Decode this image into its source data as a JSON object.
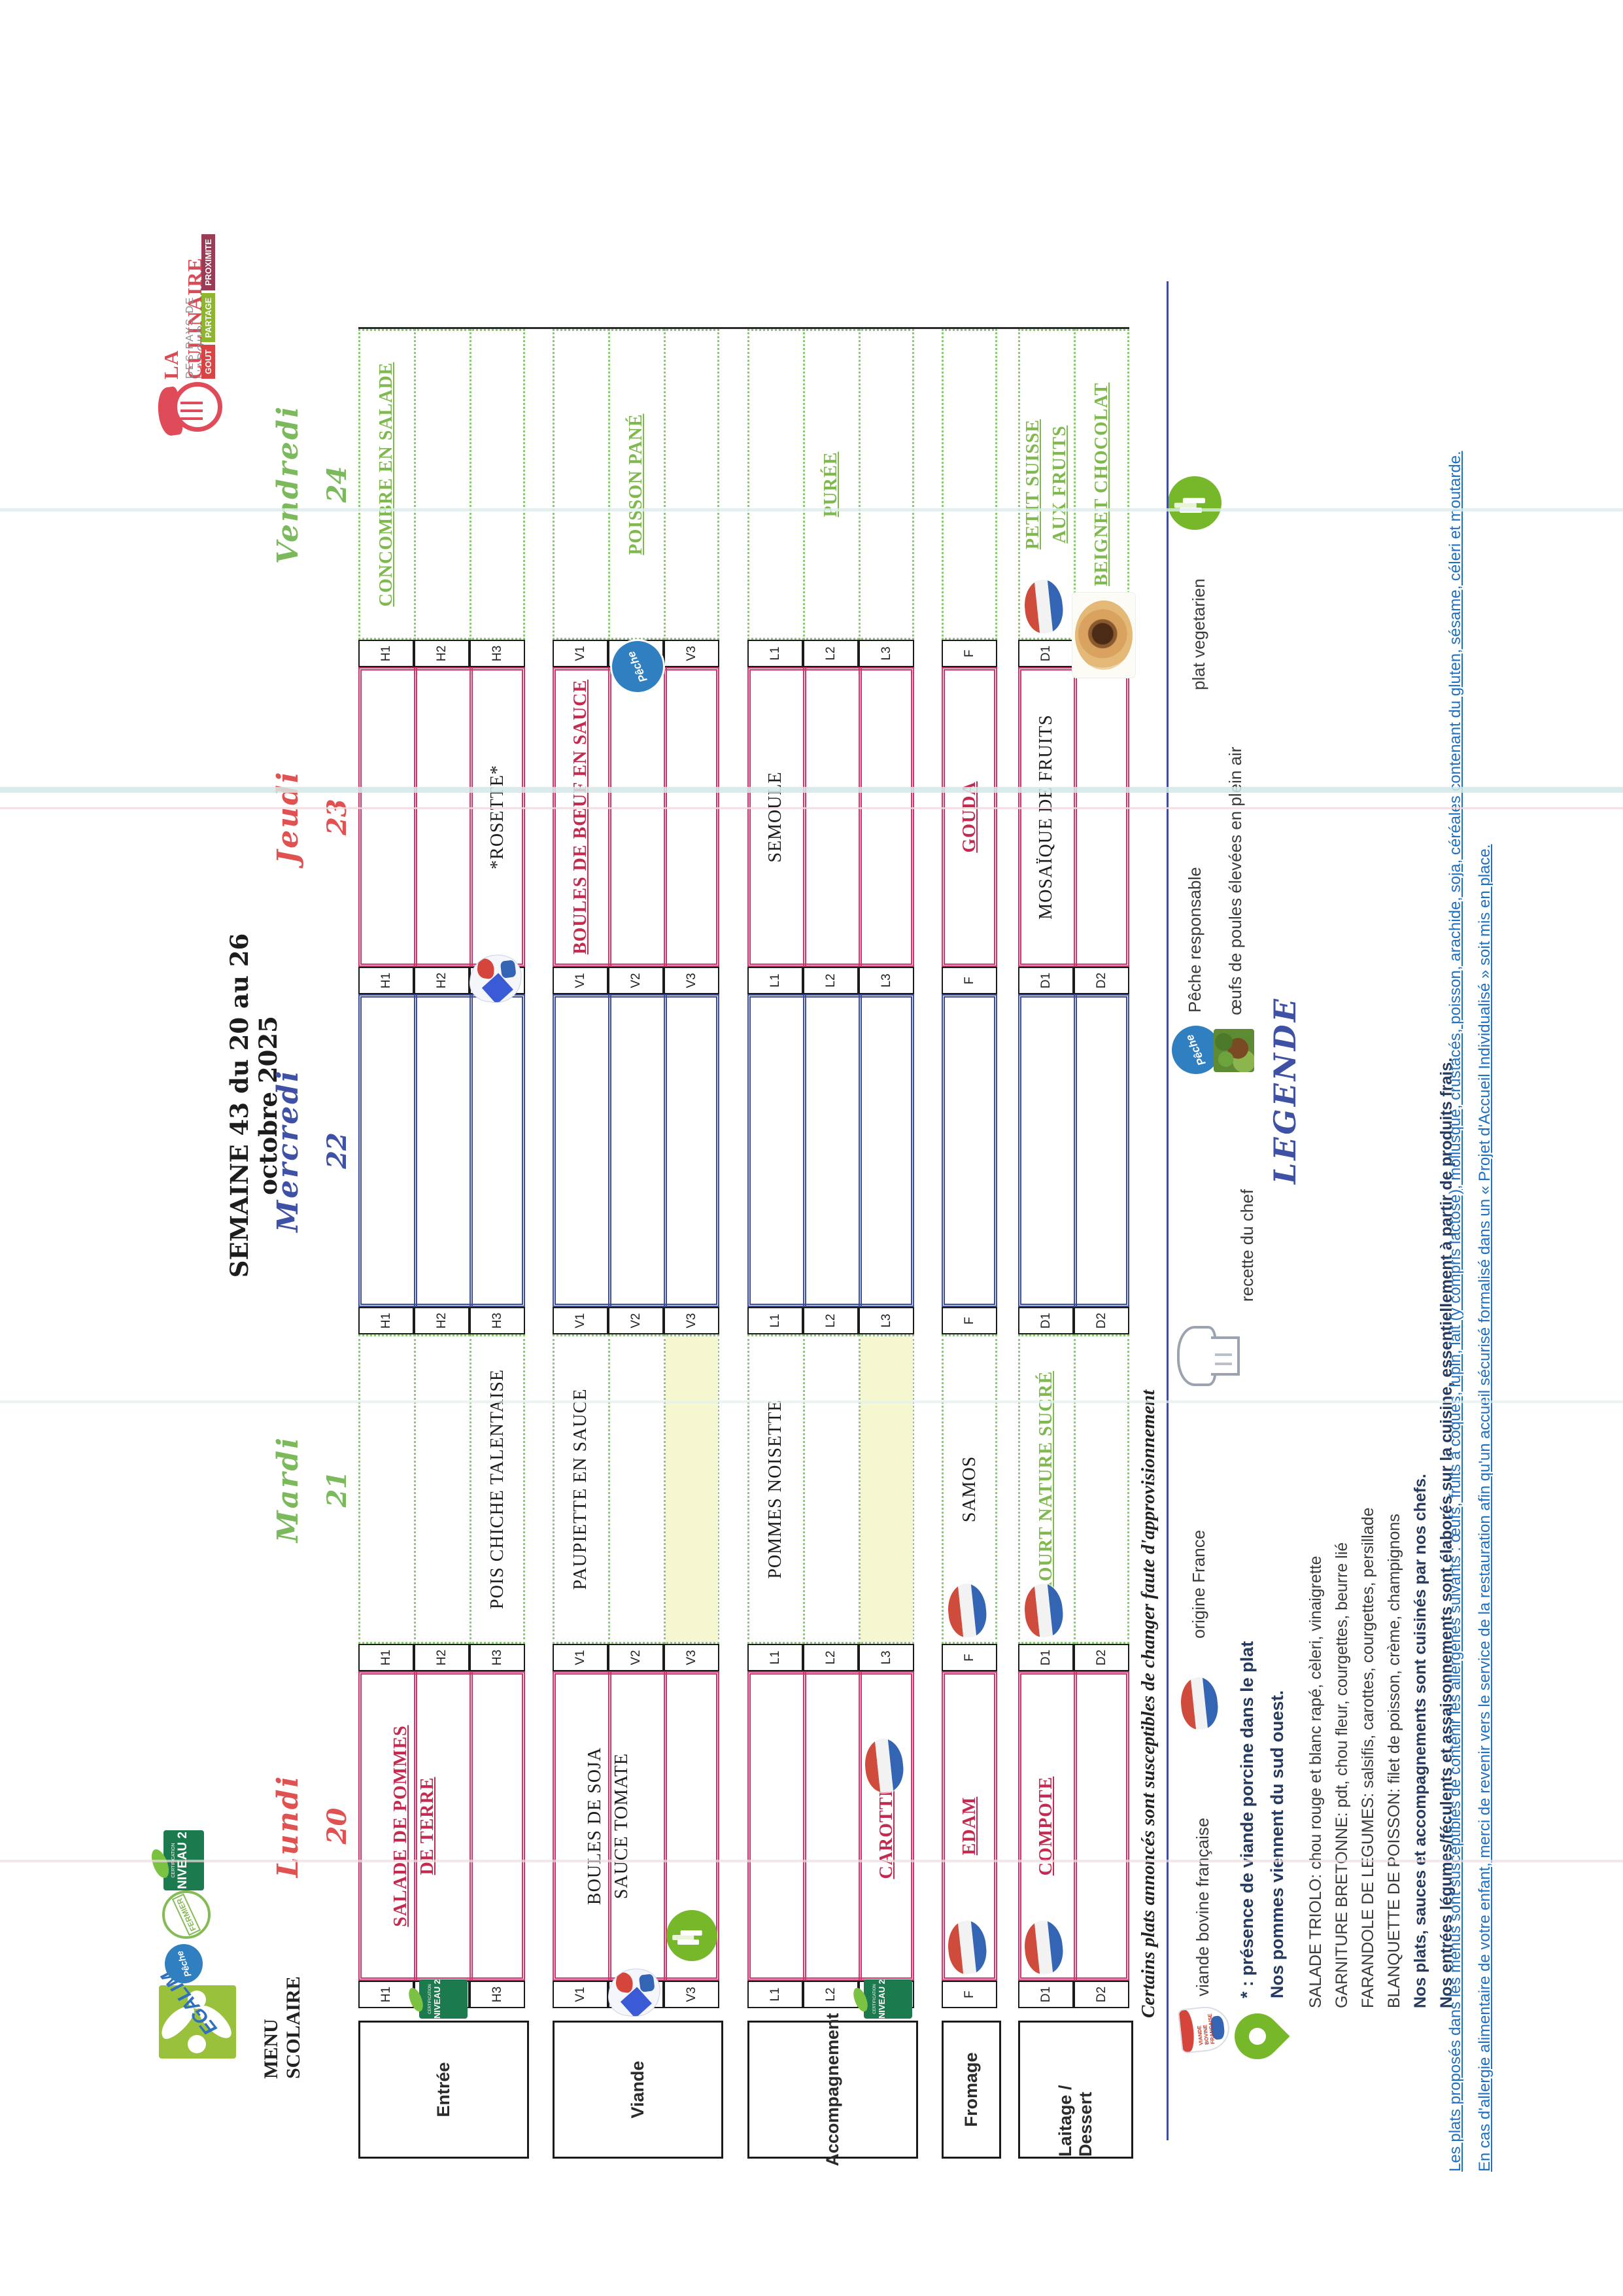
{
  "page": {
    "title": "SEMAINE 43 du 20 au 26 octobre 2025",
    "menu_heading_line1": "MENU",
    "menu_heading_line2": "SCOLAIRE"
  },
  "brand": {
    "name": "LA CULINAIRE",
    "subtitle": "DES PAYS DE L'ADOUR",
    "tags": [
      {
        "label": "GOUT",
        "color": "#d94343"
      },
      {
        "label": "PARTAGE",
        "color": "#8db52e"
      },
      {
        "label": "PROXIMITE",
        "color": "#9c3b55"
      }
    ],
    "icon": "chef-hat-plate-icon"
  },
  "corner_logos": [
    {
      "name": "egalim-logo",
      "label": "EGALIM"
    },
    {
      "name": "peche-responsable-logo",
      "label": "Pêche"
    },
    {
      "name": "fermier-stamp",
      "label": "FERMIER"
    },
    {
      "name": "certification-niveau2-badge",
      "label_top": "CERTIFICATION",
      "label": "NIVEAU 2"
    }
  ],
  "row_groups": [
    {
      "label": "Entrée",
      "codes": [
        "H1",
        "H2",
        "H3"
      ]
    },
    {
      "label": "Viande",
      "codes": [
        "V1",
        "V2",
        "V3"
      ]
    },
    {
      "label": "Accompagnement",
      "codes": [
        "L1",
        "L2",
        "L3"
      ]
    },
    {
      "label": "Fromage",
      "codes": [
        "F"
      ]
    },
    {
      "label": "Laitage / Dessert",
      "codes": [
        "D1",
        "D2"
      ]
    }
  ],
  "days": [
    {
      "name": "Lundi",
      "date": "20",
      "script_color": "#e05252",
      "border_color": "#d4336a",
      "border_style": "double",
      "items": [
        {
          "rows": [
            "H1",
            "H2"
          ],
          "lines": [
            "SALADE DE POMMES",
            "DE TERRE"
          ],
          "style": "red"
        },
        {
          "rows": [
            "V1",
            "V2"
          ],
          "lines": [
            "BOULES DE SOJA",
            "SAUCE TOMATE"
          ],
          "style": "black"
        },
        {
          "rows": [
            "L3"
          ],
          "lines": [
            "CAROTTES"
          ],
          "style": "red"
        },
        {
          "rows": [
            "F"
          ],
          "lines": [
            "EDAM"
          ],
          "style": "red"
        },
        {
          "rows": [
            "D1"
          ],
          "lines": [
            "COMPOTE"
          ],
          "style": "red"
        }
      ],
      "fills": [],
      "icons": [
        {
          "type": "niveau2",
          "at": "H2-label"
        },
        {
          "type": "chef",
          "at": "V2-label"
        },
        {
          "type": "veg",
          "at": "V3-start"
        },
        {
          "type": "flag",
          "at": "L3-mid"
        },
        {
          "type": "niveau2",
          "at": "L3-label"
        },
        {
          "type": "flag",
          "at": "F-start"
        },
        {
          "type": "flag",
          "at": "D1-start"
        }
      ]
    },
    {
      "name": "Mardi",
      "date": "21",
      "script_color": "#7cb95c",
      "border_color": "#8cc878",
      "border_style": "dotted",
      "items": [
        {
          "rows": [
            "H3"
          ],
          "lines": [
            "POIS CHICHE TALENTAISE"
          ],
          "style": "black"
        },
        {
          "rows": [
            "V1"
          ],
          "lines": [
            "PAUPIETTE EN SAUCE"
          ],
          "style": "black"
        },
        {
          "rows": [
            "L1"
          ],
          "lines": [
            "POMMES NOISETTE"
          ],
          "style": "black"
        },
        {
          "rows": [
            "F"
          ],
          "lines": [
            "SAMOS"
          ],
          "style": "black"
        },
        {
          "rows": [
            "D1"
          ],
          "lines": [
            "YAOURT NATURE SUCRÉ"
          ],
          "style": "green"
        }
      ],
      "fills": [
        "V3",
        "L3"
      ],
      "icons": [
        {
          "type": "flag",
          "at": "F-start"
        },
        {
          "type": "flag",
          "at": "D1-start"
        }
      ]
    },
    {
      "name": "Mercredi",
      "date": "22",
      "script_color": "#3f51a5",
      "border_color": "#3c4da0",
      "border_style": "double",
      "items": [],
      "fills": [],
      "icons": []
    },
    {
      "name": "Jeudi",
      "date": "23",
      "script_color": "#e05252",
      "border_color": "#d4336a",
      "border_style": "double",
      "items": [
        {
          "rows": [
            "H3"
          ],
          "lines": [
            "*ROSETTE*"
          ],
          "style": "black"
        },
        {
          "rows": [
            "V1"
          ],
          "lines": [
            "BOULES DE BŒUF EN SAUCE"
          ],
          "style": "red"
        },
        {
          "rows": [
            "L1"
          ],
          "lines": [
            "SEMOULE"
          ],
          "style": "black"
        },
        {
          "rows": [
            "F"
          ],
          "lines": [
            "GOUDA"
          ],
          "style": "red"
        },
        {
          "rows": [
            "D1"
          ],
          "lines": [
            "MOSAÏQUE DE FRUITS"
          ],
          "style": "black"
        }
      ],
      "fills": [],
      "icons": [
        {
          "type": "chef",
          "at": "H3-label"
        }
      ]
    },
    {
      "name": "Vendredi",
      "date": "24",
      "script_color": "#7cb95c",
      "border_color": "#8cc878",
      "border_style": "dotted",
      "items": [
        {
          "rows": [
            "H1"
          ],
          "lines": [
            "CONCOMBRE EN SALADE"
          ],
          "style": "green"
        },
        {
          "rows": [
            "V2"
          ],
          "lines": [
            "POISSON PANÉ"
          ],
          "style": "green"
        },
        {
          "rows": [
            "L2"
          ],
          "lines": [
            "PURÉE"
          ],
          "style": "green"
        },
        {
          "rows": [
            "D1"
          ],
          "lines": [
            "PETIT SUISSE",
            "AUX FRUITS"
          ],
          "style": "green"
        },
        {
          "rows": [
            "D2"
          ],
          "lines": [
            "BEIGNET CHOCOLAT"
          ],
          "style": "green"
        }
      ],
      "fills": [],
      "icons": [
        {
          "type": "peche",
          "at": "V2-label"
        },
        {
          "type": "flag",
          "at": "D1-start"
        },
        {
          "type": "photo-beignet",
          "at": "D2-start"
        }
      ]
    }
  ],
  "disclaimer_italic": "Certains plats annoncés sont susceptibles de changer faute d'approvisionnement",
  "legend": {
    "title": "LEGENDE",
    "items": [
      {
        "icon": "chef-hat-icon",
        "label": "recette du chef"
      },
      {
        "icon": "peche-responsable-logo",
        "label": "Pêche responsable"
      },
      {
        "icon": "hen-photo",
        "label": "œufs de poules élevées en plein air"
      },
      {
        "icon": "plat-vegetarien-icon",
        "label": "plat vegetarien"
      },
      {
        "icon": "viande-bovine-francaise-icon",
        "label": "viande bovine française"
      },
      {
        "icon": "origine-france-flag-icon",
        "label": "origine France"
      },
      {
        "icon": "green-pin-icon",
        "label": ""
      }
    ],
    "star_notes": [
      "* : présence de viande porcine dans le plat",
      "Nos pommes viennent du sud ouest."
    ],
    "composition_lines": [
      {
        "text": "SALADE TRIOLO: chou rouge et blanc rapé, cèleri, vinaigrette",
        "bold": false
      },
      {
        "text": "GARNITURE BRETONNE: pdt, chou fleur, courgettes, beurre lié",
        "bold": false
      },
      {
        "text": "FARANDOLE DE LEGUMES: salsifis, carottes, courgettes, persillade",
        "bold": false
      },
      {
        "text": "BLANQUETTE DE POISSON: filet de poisson, crème, champignons",
        "bold": false
      },
      {
        "text": "Nos plats, sauces et accompagnements sont cuisinés par nos chefs.",
        "bold": true
      },
      {
        "text": "Nos entrées légumes/féculents et assaisonnements sont élaborés sur la cuisine, essentiellement à partir de produits frais.",
        "bold": true
      }
    ],
    "allergen_lines": [
      "Les plats proposés dans les menus sont susceptibles de contenir les allergènes suivants : œufs, fruits à coques, lupin, lait (y compris lactose), mollusque, crustacés, poisson, arachide, soja, céréales contenant du gluten, sésame, céleri et moutarde.",
      "En cas d'allergie alimentaire de votre enfant, merci de revenir vers le service de la restauration afin qu'un accueil sécurisé formalisé dans un « Projet d'Accueil Individualisé » soit mis en place."
    ]
  },
  "colors": {
    "crimson": "#d4336a",
    "green_border": "#8cc878",
    "navy": "#3c4da0",
    "item_red": "#c22a4f",
    "item_green": "#7eb84e",
    "fill_yellow": "#f4f7cf",
    "allergen_blue": "#1d6fc2"
  }
}
